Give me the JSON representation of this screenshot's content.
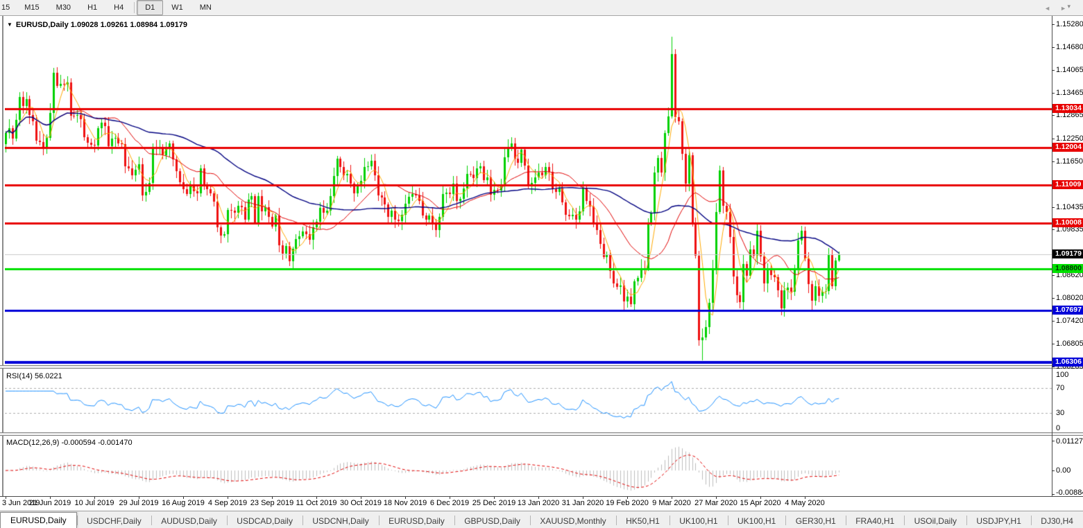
{
  "toolbar": {
    "timeframes": [
      {
        "label": "15",
        "active": false,
        "clipped": true
      },
      {
        "label": "M15",
        "active": false
      },
      {
        "label": "M30",
        "active": false
      },
      {
        "label": "H1",
        "active": false
      },
      {
        "label": "H4",
        "active": false
      },
      {
        "label": "D1",
        "active": true
      },
      {
        "label": "W1",
        "active": false
      },
      {
        "label": "MN",
        "active": false
      }
    ],
    "overflow_icon": "▾"
  },
  "window": {
    "title_dropdown_icon": "▼",
    "title": "EURUSD,Daily  1.09028 1.09261 1.08984 1.09179"
  },
  "indicators": {
    "rsi_label": "RSI(14) 56.0221",
    "macd_label": "MACD(12,26,9) -0.000594 -0.001470"
  },
  "tab_bar": {
    "tabs": [
      {
        "label": "EURUSD,Daily",
        "active": true
      },
      {
        "label": "USDCHF,Daily"
      },
      {
        "label": "AUDUSD,Daily"
      },
      {
        "label": "USDCAD,Daily"
      },
      {
        "label": "USDCNH,Daily"
      },
      {
        "label": "EURUSD,Daily"
      },
      {
        "label": "GBPUSD,Daily"
      },
      {
        "label": "XAUUSD,Monthly"
      },
      {
        "label": "HK50,H1"
      },
      {
        "label": "UK100,H1"
      },
      {
        "label": "UK100,H1"
      },
      {
        "label": "GER30,H1"
      },
      {
        "label": "FRA40,H1"
      },
      {
        "label": "USOil,Daily"
      },
      {
        "label": "USDJPY,H1"
      },
      {
        "label": "DJ30,H4"
      }
    ],
    "scroll_left": "◄",
    "scroll_right": "►"
  },
  "chart_data": {
    "type": "candlestick",
    "symbol": "EURUSD",
    "timeframe": "Daily",
    "last_ohlc": {
      "open": "1.09028",
      "high": "1.09261",
      "low": "1.08984",
      "close": "1.09179"
    },
    "candle_up_color": "#00d000",
    "candle_down_color": "#ef1010",
    "first_open": 1.121,
    "closes": [
      1.124,
      1.1253,
      1.1224,
      1.1275,
      1.1335,
      1.1312,
      1.133,
      1.1288,
      1.1271,
      1.122,
      1.1216,
      1.1198,
      1.1227,
      1.1293,
      1.14,
      1.1365,
      1.137,
      1.1368,
      1.1373,
      1.1286,
      1.1285,
      1.1288,
      1.1277,
      1.1228,
      1.1213,
      1.1208,
      1.1206,
      1.1253,
      1.1268,
      1.1258,
      1.1205,
      1.1225,
      1.1227,
      1.1212,
      1.121,
      1.1152,
      1.1145,
      1.1128,
      1.1143,
      1.1156,
      1.1075,
      1.1083,
      1.1108,
      1.1203,
      1.12,
      1.12,
      1.118,
      1.12,
      1.1212,
      1.117,
      1.1139,
      1.1109,
      1.109,
      1.1078,
      1.11,
      1.1085,
      1.108,
      1.1145,
      1.1101,
      1.109,
      1.1079,
      1.1057,
      1.099,
      1.0968,
      1.0971,
      1.1035,
      1.1033,
      1.1028,
      1.1047,
      1.1043,
      1.101,
      1.1064,
      1.1073,
      1.1002,
      1.1072,
      1.1031,
      1.1042,
      1.1017,
      1.0992,
      1.1021,
      1.0941,
      1.092,
      1.094,
      1.0899,
      1.0932,
      1.0959,
      1.0966,
      1.0979,
      1.0971,
      1.0956,
      1.0989,
      1.1004,
      1.1041,
      1.1029,
      1.1034,
      1.1073,
      1.1125,
      1.1171,
      1.115,
      1.1127,
      1.1132,
      1.1105,
      1.108,
      1.1099,
      1.1113,
      1.115,
      1.1152,
      1.1166,
      1.1127,
      1.1074,
      1.1068,
      1.105,
      1.1018,
      1.1034,
      1.101,
      1.1006,
      1.1022,
      1.1052,
      1.107,
      1.1078,
      1.1074,
      1.1059,
      1.1021,
      1.101,
      1.1021,
      1.1001,
      1.0982,
      1.1017,
      1.1078,
      1.1082,
      1.1077,
      1.1105,
      1.106,
      1.1065,
      1.1092,
      1.1131,
      1.113,
      1.1121,
      1.1145,
      1.1152,
      1.1114,
      1.1122,
      1.1076,
      1.1088,
      1.1087,
      1.1098,
      1.1175,
      1.1199,
      1.1212,
      1.1172,
      1.116,
      1.1196,
      1.1153,
      1.1103,
      1.1107,
      1.1122,
      1.1134,
      1.1128,
      1.115,
      1.1136,
      1.109,
      1.1084,
      1.1093,
      1.1055,
      1.1023,
      1.1019,
      1.1022,
      1.101,
      1.1032,
      1.1093,
      1.106,
      1.1044,
      1.1,
      1.0983,
      1.0945,
      1.091,
      1.0917,
      1.0874,
      1.0841,
      1.0831,
      1.0835,
      1.0792,
      1.0806,
      1.0785,
      1.0846,
      1.0855,
      1.0882,
      1.088,
      1.1,
      1.1026,
      1.1134,
      1.1173,
      1.1134,
      1.124,
      1.1284,
      1.145,
      1.1281,
      1.127,
      1.1184,
      1.1105,
      1.118,
      1.1,
      1.0915,
      1.069,
      1.0698,
      1.0725,
      1.0789,
      1.088,
      1.103,
      1.114,
      1.1047,
      1.103,
      1.0964,
      1.0859,
      1.081,
      1.0791,
      1.0892,
      1.086,
      1.093,
      1.0915,
      1.0981,
      1.0912,
      1.084,
      1.0875,
      1.0863,
      1.0858,
      1.0822,
      1.0775,
      1.0823,
      1.083,
      1.0818,
      1.0875,
      1.0955,
      1.098,
      1.0907,
      1.0838,
      1.0795,
      1.0834,
      1.0807,
      1.0818,
      1.082,
      1.0916,
      1.0834,
      1.0902,
      1.0918
    ],
    "wick_overrides": {
      "14": {
        "h": 1.1412
      },
      "84": {
        "l": 1.0879
      },
      "183": {
        "l": 1.0778
      },
      "195": {
        "h": 1.1495
      },
      "203": {
        "l": 1.0675
      },
      "204": {
        "l": 1.0636
      },
      "244": {
        "h": 1.0926,
        "l": 1.0898
      }
    },
    "x_axis": {
      "labels": [
        "3 Jun 2019",
        "21 Jun 2019",
        "10 Jul 2019",
        "29 Jul 2019",
        "16 Aug 2019",
        "4 Sep 2019",
        "23 Sep 2019",
        "11 Oct 2019",
        "30 Oct 2019",
        "18 Nov 2019",
        "6 Dec 2019",
        "25 Dec 2019",
        "13 Jan 2020",
        "31 Jan 2020",
        "19 Feb 2020",
        "9 Mar 2020",
        "27 Mar 2020",
        "15 Apr 2020",
        "4 May 2020"
      ]
    },
    "y_axis": {
      "ticks": [
        "1.15280",
        "1.14680",
        "1.14065",
        "1.13465",
        "1.12865",
        "1.12250",
        "1.11650",
        "1.10435",
        "1.09835",
        "1.08620",
        "1.08020",
        "1.07420",
        "1.06805",
        "1.06205"
      ],
      "max_visible": 1.1528,
      "min_visible": 1.06205
    },
    "levels": [
      {
        "price": 1.13034,
        "label": "1.13034",
        "color": "#e80000",
        "lw": 3,
        "badge_bg": "#e80000",
        "badge_fg": "#ffffff"
      },
      {
        "price": 1.12004,
        "label": "1.12004",
        "color": "#e80000",
        "lw": 3,
        "badge_bg": "#e80000",
        "badge_fg": "#ffffff"
      },
      {
        "price": 1.11009,
        "label": "1.11009",
        "color": "#e80000",
        "lw": 3,
        "badge_bg": "#e80000",
        "badge_fg": "#ffffff"
      },
      {
        "price": 1.10008,
        "label": "1.10008",
        "color": "#e80000",
        "lw": 3,
        "badge_bg": "#e80000",
        "badge_fg": "#ffffff"
      },
      {
        "price": 1.09179,
        "label": "1.09179",
        "color": "#c8c8c8",
        "lw": 1,
        "badge_bg": "#000000",
        "badge_fg": "#ffffff"
      },
      {
        "price": 1.088,
        "label": "1.08800",
        "color": "#00e000",
        "lw": 3,
        "badge_bg": "#00e000",
        "badge_fg": "#003300"
      },
      {
        "price": 1.07697,
        "label": "1.07697",
        "color": "#0000d8",
        "lw": 3,
        "badge_bg": "#0000d8",
        "badge_fg": "#ffffff"
      },
      {
        "price": 1.06306,
        "label": "1.06306",
        "color": "#0000d8",
        "lw": 4,
        "badge_bg": "#0000d8",
        "badge_fg": "#ffffff"
      }
    ],
    "moving_averages": [
      {
        "period": 5,
        "color": "#ffa800",
        "width": 1
      },
      {
        "period": 20,
        "color": "#e00000",
        "width": 1
      },
      {
        "period": 50,
        "color": "#000080",
        "width": 1.4
      }
    ],
    "rsi": {
      "period": 14,
      "last_value": 56.0221,
      "color": "#1e90ff",
      "guide_levels": [
        70,
        30
      ],
      "scale_ticks": [
        {
          "v": 100,
          "label": "100"
        },
        {
          "v": 70,
          "label": "70"
        },
        {
          "v": 30,
          "label": "30"
        },
        {
          "v": 0,
          "label": "0"
        }
      ]
    },
    "macd": {
      "fast": 12,
      "slow": 26,
      "signal": 9,
      "last_main": -0.000594,
      "last_signal": -0.00147,
      "bar_color": "#bdbdbd",
      "signal_color": "#e00000",
      "scale_ticks": [
        {
          "v": 0.011277,
          "label": "0.011277"
        },
        {
          "v": 0,
          "label": "0.00"
        },
        {
          "v": -0.008845,
          "label": "-0.008845"
        }
      ]
    }
  }
}
